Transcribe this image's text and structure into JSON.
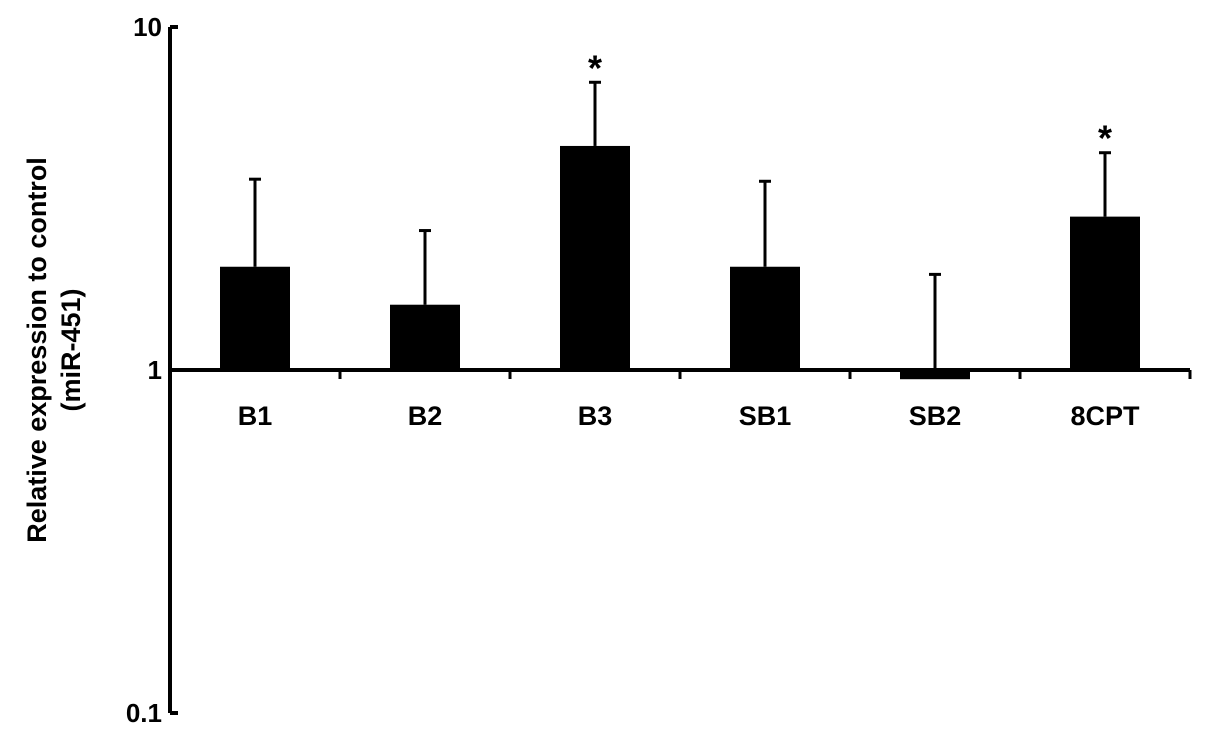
{
  "chart_data": {
    "type": "bar",
    "title": "",
    "xlabel": "",
    "ylabel_lines": [
      "Relative expression to control",
      "(miR-451)"
    ],
    "yscale": "log",
    "ylim": [
      0.1,
      10
    ],
    "yticks": [
      {
        "value": 0.1,
        "label": "0.1"
      },
      {
        "value": 1,
        "label": "1"
      },
      {
        "value": 10,
        "label": "10"
      }
    ],
    "baseline": 1,
    "categories": [
      "B1",
      "B2",
      "B3",
      "SB1",
      "SB2",
      "8CPT"
    ],
    "values": [
      2.0,
      1.55,
      4.5,
      2.0,
      0.94,
      2.8
    ],
    "error_upper": [
      3.6,
      2.55,
      6.9,
      3.55,
      1.9,
      4.3
    ],
    "significance": [
      "",
      "",
      "*",
      "",
      "",
      "*"
    ],
    "colors": {
      "bar": "#000000",
      "axis": "#000000",
      "background": "#ffffff"
    }
  }
}
